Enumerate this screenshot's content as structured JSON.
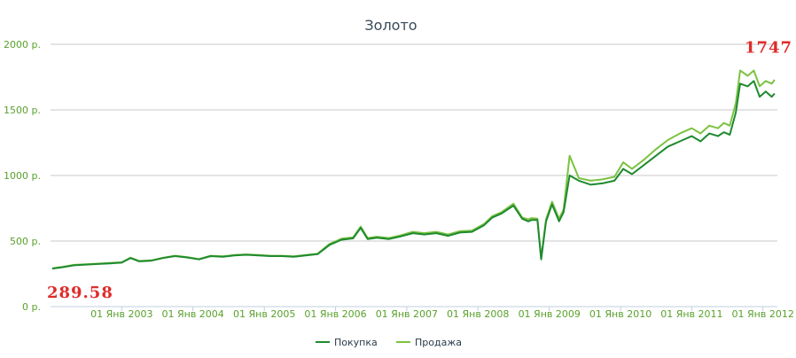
{
  "chart_data": {
    "type": "line",
    "title": "Золото",
    "xlabel": "",
    "ylabel": "",
    "ylim": [
      0,
      2000
    ],
    "xlim": [
      "2002-01-01",
      "2012-03-15"
    ],
    "y_ticks": [
      "0 р.",
      "500 р.",
      "1000 р.",
      "1500 р.",
      "2000 р."
    ],
    "y_tick_values": [
      0,
      500,
      1000,
      1500,
      2000
    ],
    "x_ticks": [
      "01 Янв 2003",
      "01 Янв 2004",
      "01 Янв 2005",
      "01 Янв 2006",
      "01 Янв 2007",
      "01 Янв 2008",
      "01 Янв 2009",
      "01 Янв 2010",
      "01 Янв 2011",
      "01 Янв 2012"
    ],
    "x_tick_dates": [
      "2003-01-01",
      "2004-01-01",
      "2005-01-01",
      "2006-01-01",
      "2007-01-01",
      "2008-01-01",
      "2009-01-01",
      "2010-01-01",
      "2011-01-01",
      "2012-01-01"
    ],
    "grid": true,
    "legend_position": "bottom",
    "colors": {
      "buy": "#1e8a2e",
      "sell": "#7cc242",
      "annotation": "#e02a2a",
      "tick": "#5aa02c"
    },
    "annotations": [
      {
        "text": "289.58",
        "x": "2002-01-10",
        "y": 289.58,
        "placement": "below"
      },
      {
        "text": "1747",
        "x": "2011-09-06",
        "y": 1800,
        "placement": "right"
      }
    ],
    "series": [
      {
        "name": "Покупка",
        "color": "#1e8a2e",
        "x": [
          "2002-01-10",
          "2002-03-01",
          "2002-05-01",
          "2002-07-01",
          "2002-09-01",
          "2002-11-01",
          "2003-01-01",
          "2003-02-15",
          "2003-04-01",
          "2003-06-01",
          "2003-08-01",
          "2003-10-01",
          "2003-12-01",
          "2004-02-01",
          "2004-04-01",
          "2004-06-01",
          "2004-08-01",
          "2004-10-01",
          "2004-12-01",
          "2005-02-01",
          "2005-04-01",
          "2005-06-01",
          "2005-08-01",
          "2005-10-01",
          "2005-12-01",
          "2006-02-01",
          "2006-04-01",
          "2006-05-10",
          "2006-06-15",
          "2006-08-01",
          "2006-10-01",
          "2006-12-01",
          "2007-02-01",
          "2007-04-01",
          "2007-06-01",
          "2007-08-01",
          "2007-10-01",
          "2007-12-01",
          "2008-02-01",
          "2008-03-15",
          "2008-05-01",
          "2008-07-01",
          "2008-08-15",
          "2008-09-15",
          "2008-10-01",
          "2008-11-01",
          "2008-11-20",
          "2008-12-15",
          "2009-01-15",
          "2009-02-20",
          "2009-03-15",
          "2009-04-15",
          "2009-06-01",
          "2009-08-01",
          "2009-10-01",
          "2009-12-01",
          "2010-01-15",
          "2010-03-01",
          "2010-05-01",
          "2010-07-01",
          "2010-09-01",
          "2010-11-01",
          "2011-01-01",
          "2011-02-15",
          "2011-04-01",
          "2011-05-15",
          "2011-06-15",
          "2011-07-15",
          "2011-08-15",
          "2011-09-06",
          "2011-10-15",
          "2011-11-15",
          "2011-12-15",
          "2012-01-15",
          "2012-02-15",
          "2012-03-01"
        ],
        "values": [
          290,
          300,
          315,
          320,
          325,
          330,
          335,
          370,
          345,
          350,
          370,
          385,
          375,
          360,
          385,
          380,
          390,
          395,
          390,
          385,
          385,
          380,
          390,
          400,
          470,
          510,
          520,
          600,
          515,
          525,
          515,
          535,
          560,
          550,
          560,
          540,
          565,
          570,
          620,
          680,
          710,
          770,
          670,
          650,
          660,
          660,
          360,
          650,
          780,
          650,
          720,
          1000,
          960,
          930,
          940,
          960,
          1050,
          1010,
          1080,
          1150,
          1220,
          1260,
          1300,
          1260,
          1320,
          1300,
          1330,
          1310,
          1480,
          1700,
          1680,
          1720,
          1600,
          1640,
          1600,
          1625
        ]
      },
      {
        "name": "Продажа",
        "color": "#7cc242",
        "x": [
          "2002-01-10",
          "2002-03-01",
          "2002-05-01",
          "2002-07-01",
          "2002-09-01",
          "2002-11-01",
          "2003-01-01",
          "2003-02-15",
          "2003-04-01",
          "2003-06-01",
          "2003-08-01",
          "2003-10-01",
          "2003-12-01",
          "2004-02-01",
          "2004-04-01",
          "2004-06-01",
          "2004-08-01",
          "2004-10-01",
          "2004-12-01",
          "2005-02-01",
          "2005-04-01",
          "2005-06-01",
          "2005-08-01",
          "2005-10-01",
          "2005-12-01",
          "2006-02-01",
          "2006-04-01",
          "2006-05-10",
          "2006-06-15",
          "2006-08-01",
          "2006-10-01",
          "2006-12-01",
          "2007-02-01",
          "2007-04-01",
          "2007-06-01",
          "2007-08-01",
          "2007-10-01",
          "2007-12-01",
          "2008-02-01",
          "2008-03-15",
          "2008-05-01",
          "2008-07-01",
          "2008-08-15",
          "2008-09-15",
          "2008-10-01",
          "2008-11-01",
          "2008-11-20",
          "2008-12-15",
          "2009-01-15",
          "2009-02-20",
          "2009-03-15",
          "2009-04-15",
          "2009-06-01",
          "2009-08-01",
          "2009-10-01",
          "2009-12-01",
          "2010-01-15",
          "2010-03-01",
          "2010-05-01",
          "2010-07-01",
          "2010-09-01",
          "2010-11-01",
          "2011-01-01",
          "2011-02-15",
          "2011-04-01",
          "2011-05-15",
          "2011-06-15",
          "2011-07-15",
          "2011-08-15",
          "2011-09-06",
          "2011-10-15",
          "2011-11-15",
          "2011-12-15",
          "2012-01-15",
          "2012-02-15",
          "2012-03-01"
        ],
        "values": [
          292,
          302,
          318,
          323,
          328,
          333,
          338,
          373,
          348,
          353,
          373,
          388,
          378,
          363,
          388,
          383,
          393,
          398,
          393,
          388,
          388,
          383,
          393,
          403,
          478,
          518,
          528,
          610,
          523,
          533,
          523,
          543,
          570,
          560,
          570,
          550,
          575,
          580,
          630,
          690,
          720,
          785,
          680,
          665,
          675,
          670,
          370,
          665,
          800,
          670,
          740,
          1150,
          980,
          960,
          970,
          990,
          1100,
          1050,
          1120,
          1200,
          1270,
          1320,
          1360,
          1320,
          1380,
          1360,
          1400,
          1380,
          1550,
          1800,
          1760,
          1800,
          1680,
          1720,
          1700,
          1730
        ]
      }
    ]
  }
}
